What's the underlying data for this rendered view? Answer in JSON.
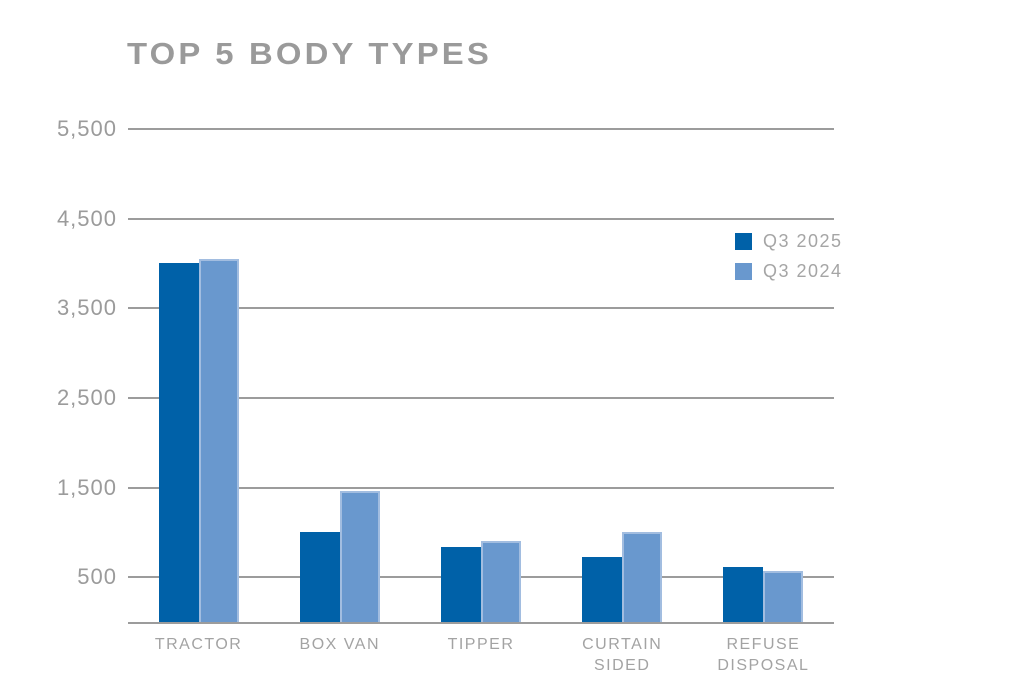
{
  "title": {
    "text": "TOP 5 BODY TYPES",
    "color": "#9a9a9a"
  },
  "chart_data": {
    "type": "bar",
    "title": "TOP 5 BODY TYPES",
    "categories": [
      "TRACTOR",
      "BOX VAN",
      "TIPPER",
      "CURTAIN SIDED",
      "REFUSE DISPOSAL"
    ],
    "category_label_lines": [
      [
        "TRACTOR"
      ],
      [
        "BOX VAN"
      ],
      [
        "TIPPER"
      ],
      [
        "CURTAIN",
        "SIDED"
      ],
      [
        "REFUSE",
        "DISPOSAL"
      ]
    ],
    "series": [
      {
        "name": "Q3 2025",
        "color": "#0061A8",
        "values": [
          4000,
          1000,
          840,
          720,
          615
        ]
      },
      {
        "name": "Q3 2024",
        "color": "#6998CE",
        "values": [
          4050,
          1460,
          900,
          1000,
          570
        ]
      }
    ],
    "ylim": [
      0,
      5500
    ],
    "yticks": [
      500,
      1500,
      2500,
      3500,
      4500,
      5500
    ],
    "ytick_labels": [
      "500",
      "1,500",
      "2,500",
      "3,500",
      "4,500",
      "5,500"
    ],
    "xlabel": "",
    "ylabel": "",
    "grid": true,
    "legend": {
      "position": "upper-right",
      "entries": [
        "Q3 2025",
        "Q3 2024"
      ]
    }
  },
  "styles": {
    "grid_color": "#9c9c9c",
    "axis_color": "#9c9c9c",
    "tick_label_color": "#9b9b9b",
    "category_label_color": "#a3a3a3",
    "legend_text_color": "#a5a5a5",
    "series_dark_blue": "#0061A8",
    "series_light_blue": "#6998CE"
  }
}
